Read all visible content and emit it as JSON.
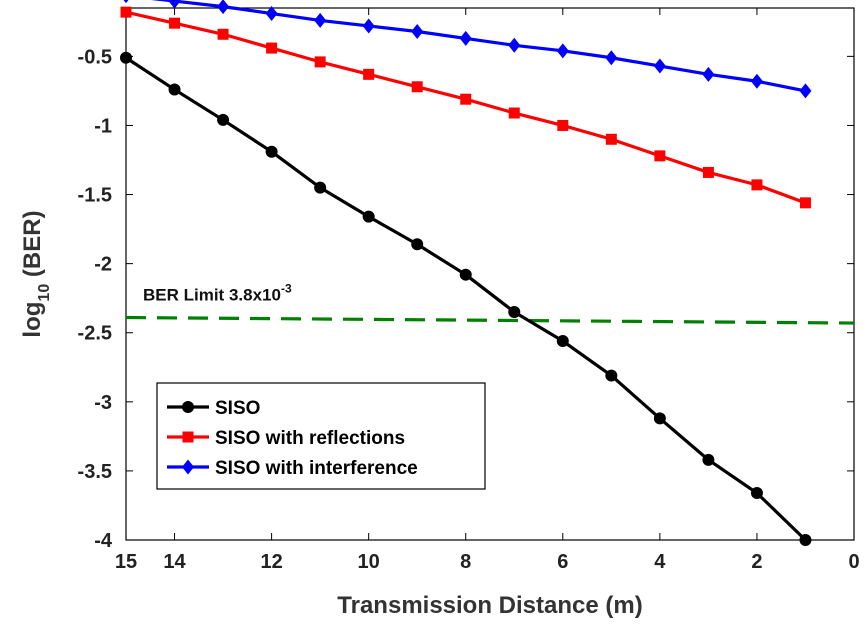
{
  "chart_data": {
    "type": "line",
    "title": "",
    "xlabel": "Transmission Distance (m)",
    "ylabel_main": "log",
    "ylabel_sub": "10",
    "ylabel_rest": " (BER)",
    "xlim": [
      15,
      0
    ],
    "ylim": [
      -4,
      -0.15
    ],
    "x_reversed": true,
    "xticks": [
      15,
      14,
      12,
      10,
      8,
      6,
      4,
      2,
      0
    ],
    "xtick_labels": [
      "15",
      "14",
      "12",
      "10",
      "8",
      "6",
      "4",
      "2",
      "0"
    ],
    "yticks": [
      -4,
      -3.5,
      -3,
      -2.5,
      -2,
      -1.5,
      -1,
      -0.5
    ],
    "ytick_labels": [
      "-4",
      "-3.5",
      "-3",
      "-2.5",
      "-2",
      "-1.5",
      "-1",
      "-0.5"
    ],
    "grid": false,
    "legend_position": "lower-left",
    "x": [
      15,
      14,
      13,
      12,
      11,
      10,
      9,
      8,
      7,
      6,
      5,
      4,
      3,
      2,
      1
    ],
    "series": [
      {
        "name": "SISO",
        "color": "#000000",
        "marker": "circle",
        "values": [
          -0.51,
          -0.74,
          -0.96,
          -1.19,
          -1.45,
          -1.66,
          -1.86,
          -2.08,
          -2.35,
          -2.56,
          -2.81,
          -3.12,
          -3.42,
          -3.66,
          -4.0
        ]
      },
      {
        "name": "SISO with reflections",
        "color": "#ff0000",
        "marker": "square",
        "values": [
          -0.18,
          -0.26,
          -0.34,
          -0.44,
          -0.54,
          -0.63,
          -0.72,
          -0.81,
          -0.91,
          -1.0,
          -1.1,
          -1.22,
          -1.34,
          -1.43,
          -1.56
        ]
      },
      {
        "name": "SISO with interference",
        "color": "#0000ff",
        "marker": "diamond",
        "values": [
          -0.06,
          -0.1,
          -0.14,
          -0.19,
          -0.24,
          -0.28,
          -0.32,
          -0.37,
          -0.42,
          -0.46,
          -0.51,
          -0.57,
          -0.63,
          -0.68,
          -0.75
        ]
      }
    ],
    "threshold": {
      "label_main": "BER Limit 3.8x10",
      "label_sup": "-3",
      "color": "#008000",
      "x_start": 15,
      "x_end": 0,
      "y_start": -2.39,
      "y_end": -2.43
    }
  }
}
